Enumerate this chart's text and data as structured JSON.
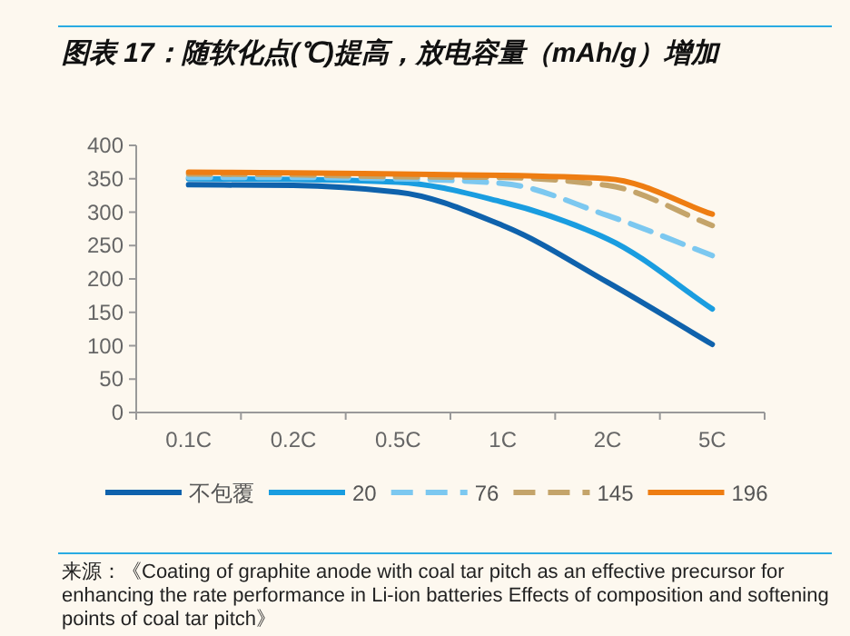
{
  "chart_data": {
    "type": "line",
    "title": "图表 17：随软化点(℃)提高，放电容量（mAh/g）增加",
    "categories": [
      "0.1C",
      "0.2C",
      "0.5C",
      "1C",
      "2C",
      "5C"
    ],
    "series": [
      {
        "name": "不包覆",
        "color": "#0f62ac",
        "line_style": "solid",
        "values": [
          341,
          340,
          330,
          280,
          195,
          102
        ]
      },
      {
        "name": "20",
        "color": "#1a9de0",
        "line_style": "solid",
        "values": [
          350,
          349,
          345,
          315,
          260,
          155
        ]
      },
      {
        "name": "76",
        "color": "#7cc8f0",
        "line_style": "dashed",
        "values": [
          352,
          352,
          350,
          343,
          295,
          235
        ]
      },
      {
        "name": "145",
        "color": "#c4a46a",
        "line_style": "dashed",
        "values": [
          357,
          356,
          353,
          352,
          340,
          280
        ]
      },
      {
        "name": "196",
        "color": "#ee7d12",
        "line_style": "solid",
        "values": [
          360,
          359,
          357,
          355,
          350,
          297
        ]
      }
    ],
    "ylim": [
      0,
      400
    ],
    "yticks": [
      0,
      50,
      100,
      150,
      200,
      250,
      300,
      350,
      400
    ],
    "grid": false,
    "legend": "bottom",
    "annotations": [
      "来源：《Coating of graphite anode with coal tar pitch as an effective precursor for enhancing the rate performance in Li-ion batteries Effects of composition and softening points of coal tar pitch》"
    ]
  }
}
